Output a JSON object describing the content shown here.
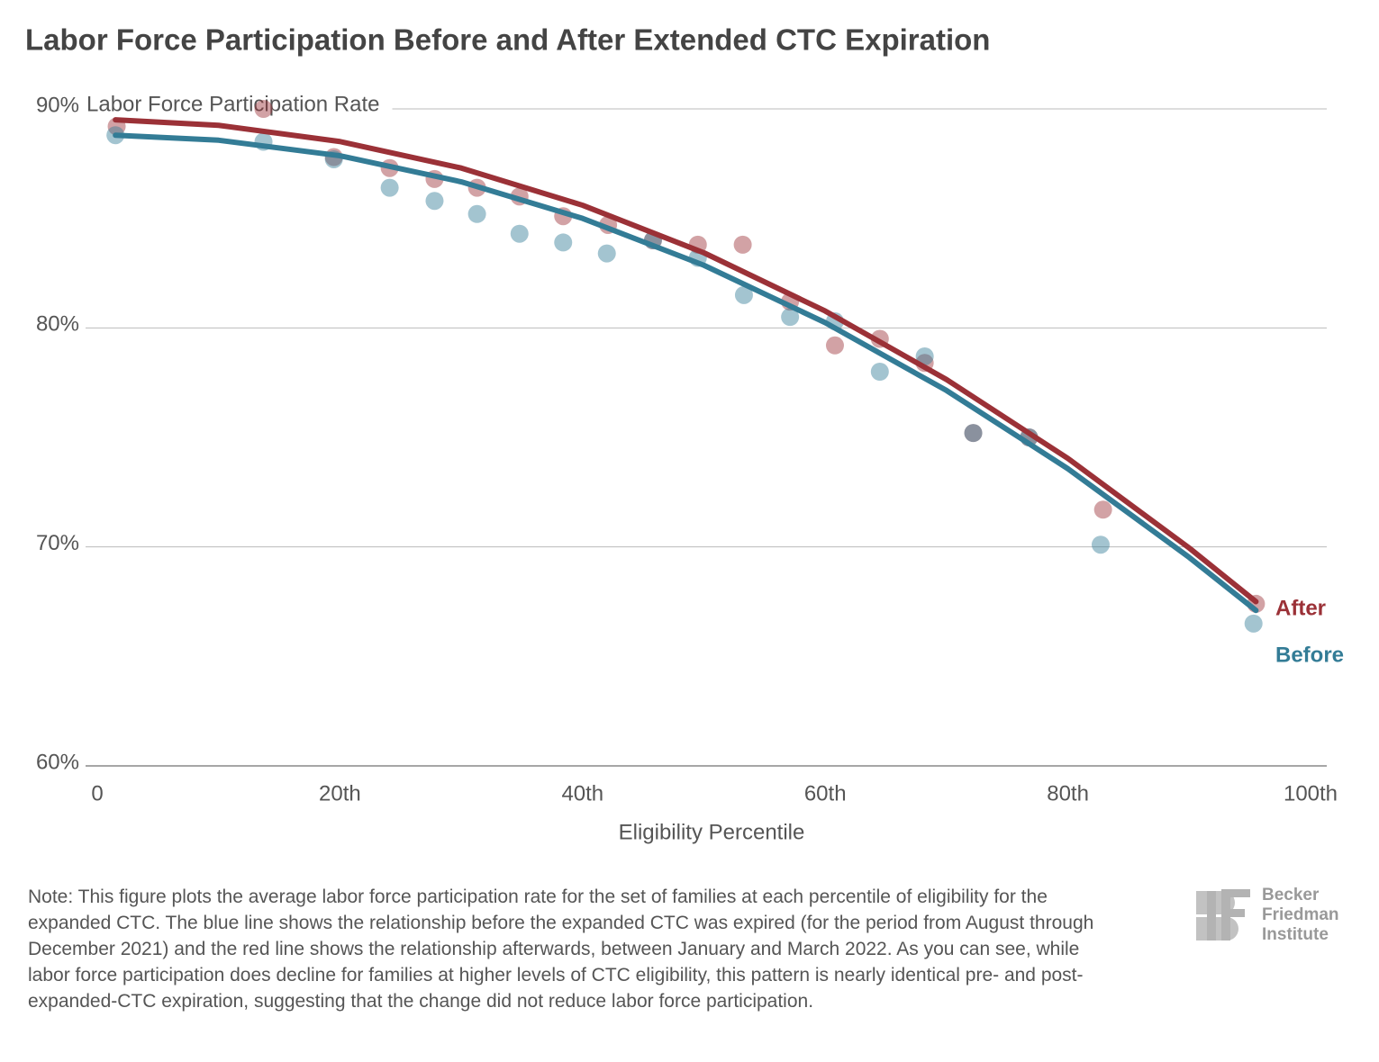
{
  "chart_data": {
    "type": "scatter",
    "title": "Labor Force Participation Before and After Extended CTC Expiration",
    "x_label": "Eligibility Percentile",
    "y_label": "Labor Force Participation Rate",
    "xlim": [
      0,
      100
    ],
    "ylim": [
      60,
      90
    ],
    "xticks": [
      0,
      {
        "value": 20,
        "label": "20th"
      },
      {
        "value": 40,
        "label": "40th"
      },
      {
        "value": 60,
        "label": "60th"
      },
      {
        "value": 80,
        "label": "80th"
      },
      {
        "value": 100,
        "label": "100th"
      }
    ],
    "yticks": [
      {
        "value": 60,
        "label": "60%"
      },
      {
        "value": 70,
        "label": "70%"
      },
      {
        "value": 80,
        "label": "80%"
      },
      {
        "value": 90,
        "label": "90%"
      }
    ],
    "grid": true,
    "series": [
      {
        "name": "After",
        "color": "#9b3137",
        "x": [
          1.6,
          13.7,
          19.5,
          24.1,
          27.8,
          31.3,
          34.8,
          38.4,
          42.1,
          45.8,
          49.5,
          53.2,
          57.1,
          60.8,
          64.5,
          68.2,
          72.2,
          76.8,
          82.9,
          95.5
        ],
        "values": [
          89.2,
          90.0,
          87.8,
          87.3,
          86.8,
          86.4,
          86.0,
          85.1,
          84.7,
          84.0,
          83.8,
          83.8,
          81.2,
          79.2,
          79.5,
          78.4,
          75.2,
          75.0,
          71.7,
          67.4
        ],
        "fit": {
          "x": [
            1.5,
            10,
            20,
            30,
            40,
            50,
            60,
            70,
            80,
            90,
            95.5
          ],
          "values": [
            89.5,
            89.25,
            88.51,
            87.3,
            85.6,
            83.43,
            80.77,
            77.64,
            74.04,
            69.95,
            67.5
          ]
        }
      },
      {
        "name": "Before",
        "color": "#337c96",
        "x": [
          1.5,
          13.7,
          19.5,
          24.1,
          27.8,
          31.3,
          34.8,
          38.4,
          42.0,
          45.8,
          49.5,
          53.3,
          57.1,
          60.8,
          64.5,
          68.2,
          72.2,
          76.8,
          82.7,
          95.3
        ],
        "values": [
          88.8,
          88.5,
          87.7,
          86.4,
          85.8,
          85.2,
          84.3,
          83.9,
          83.4,
          84.0,
          83.2,
          81.5,
          80.5,
          80.3,
          78.0,
          78.7,
          75.2,
          75.0,
          70.1,
          66.5
        ],
        "fit": {
          "x": [
            1.5,
            10,
            20,
            30,
            40,
            50,
            60,
            70,
            80,
            90,
            95.5
          ],
          "values": [
            88.8,
            88.57,
            87.86,
            86.67,
            85.0,
            82.86,
            80.24,
            77.14,
            73.57,
            69.52,
            67.1
          ]
        }
      }
    ]
  },
  "note": "Note: This figure plots the average labor force participation rate for the set of families at each percentile of eligibility for the expanded CTC. The blue line shows the relationship before the expanded CTC was expired (for the period from August through December 2021) and the red line shows the relationship afterwards, between January and March 2022. As you can see, while labor force participation does decline for families at higher levels of CTC eligibility, this pattern is nearly identical pre- and post-expanded-CTC expiration, suggesting that the change did not reduce labor force participation.",
  "logo": [
    "Becker",
    "Friedman",
    "Institute"
  ]
}
